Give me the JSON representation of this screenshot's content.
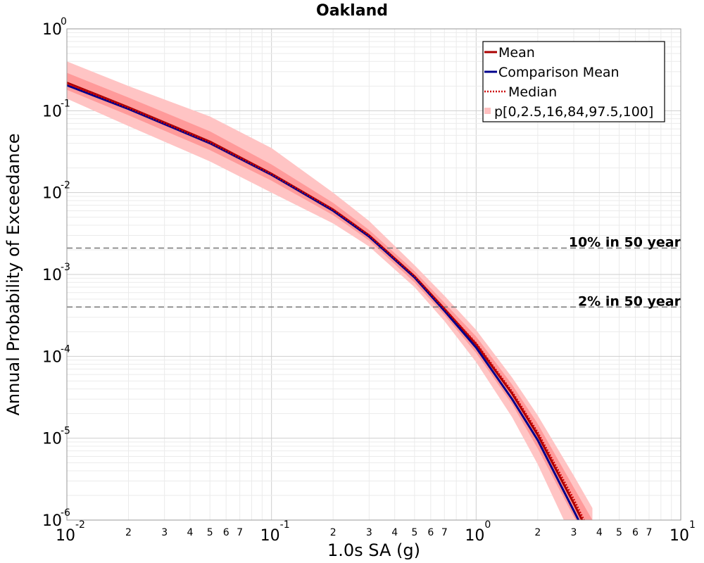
{
  "chart_data": {
    "type": "line",
    "title": "Oakland",
    "xlabel": "1.0s SA (g)",
    "ylabel": "Annual Probability of Exceedance",
    "x_scale": "log",
    "y_scale": "log",
    "xlim": [
      0.01,
      10
    ],
    "ylim": [
      1e-06,
      1
    ],
    "grid": true,
    "legend_position": "top-right",
    "x_major_ticks": [
      {
        "base": "10",
        "exp": "-2"
      },
      {
        "base": "10",
        "exp": "-1"
      },
      {
        "base": "10",
        "exp": "0"
      },
      {
        "base": "10",
        "exp": "1"
      }
    ],
    "y_major_ticks": [
      {
        "base": "10",
        "exp": "0"
      },
      {
        "base": "10",
        "exp": "-1"
      },
      {
        "base": "10",
        "exp": "-2"
      },
      {
        "base": "10",
        "exp": "-3"
      },
      {
        "base": "10",
        "exp": "-4"
      },
      {
        "base": "10",
        "exp": "-5"
      },
      {
        "base": "10",
        "exp": "-6"
      }
    ],
    "x_minor_tick_labels": [
      "2",
      "3",
      "4",
      "5",
      "6",
      "7"
    ],
    "x": [
      0.01,
      0.02,
      0.05,
      0.1,
      0.2,
      0.3,
      0.5,
      0.7,
      1.0,
      1.5,
      2.0,
      3.0,
      3.4
    ],
    "series": [
      {
        "name": "Mean",
        "color": "#aa0000",
        "style": "solid",
        "values": [
          0.22,
          0.11,
          0.042,
          0.017,
          0.0062,
          0.003,
          0.00095,
          0.00038,
          0.00014,
          3.5e-05,
          1.1e-05,
          1.6e-06,
          8.5e-07
        ]
      },
      {
        "name": "Comparison Mean",
        "color": "#00008b",
        "style": "solid",
        "values": [
          0.205,
          0.105,
          0.04,
          0.0165,
          0.006,
          0.0029,
          0.00092,
          0.00036,
          0.000128,
          3e-05,
          9.5e-06,
          1.3e-06,
          7e-07
        ]
      },
      {
        "name": "Median",
        "color": "#cc0000",
        "style": "dotted",
        "values": [
          0.215,
          0.108,
          0.041,
          0.0168,
          0.0062,
          0.003,
          0.00095,
          0.00038,
          0.000145,
          3.7e-05,
          1.18e-05,
          1.8e-06,
          9.5e-07
        ]
      }
    ],
    "bands": {
      "name": "p[0,2.5,16,84,97.5,100]",
      "color": "#ff6666",
      "x": [
        0.01,
        0.02,
        0.05,
        0.1,
        0.2,
        0.3,
        0.5,
        0.7,
        1.0,
        1.5,
        2.0,
        3.0,
        3.7
      ],
      "outer_low": [
        0.14,
        0.065,
        0.024,
        0.01,
        0.0042,
        0.0022,
        0.0007,
        0.00027,
        8.5e-05,
        1.8e-05,
        4.8e-06,
        5.5e-07,
        2e-07
      ],
      "outer_high": [
        0.4,
        0.2,
        0.085,
        0.035,
        0.01,
        0.0045,
        0.0013,
        0.00055,
        0.00021,
        5.5e-05,
        1.9e-05,
        3.5e-06,
        1.4e-06
      ],
      "inner_low": [
        0.18,
        0.088,
        0.033,
        0.014,
        0.0053,
        0.0026,
        0.0008,
        0.00032,
        0.00011,
        2.6e-05,
        7.5e-06,
        1.1e-06,
        5e-07
      ],
      "inner_high": [
        0.29,
        0.145,
        0.056,
        0.022,
        0.0075,
        0.0035,
        0.0011,
        0.00045,
        0.000175,
        4.5e-05,
        1.5e-05,
        2.5e-06,
        1e-06
      ]
    },
    "reference_lines": [
      {
        "label": "10% in 50 year",
        "y": 0.0021
      },
      {
        "label": "2% in 50 year",
        "y": 0.0004
      }
    ]
  }
}
